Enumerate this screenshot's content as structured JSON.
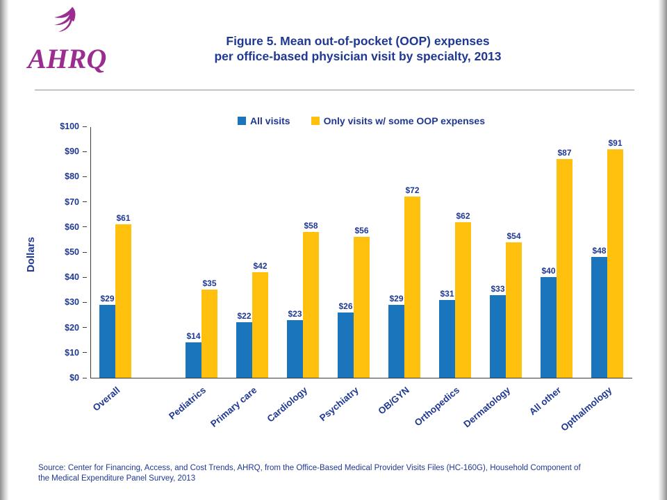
{
  "slide": {
    "logo": {
      "text": "AHRQ"
    },
    "title": {
      "line1": "Figure 5. Mean out-of-pocket (OOP) expenses",
      "line2": "per office-based physician visit by specialty, 2013"
    },
    "source": {
      "line1": "Source: Center for Financing, Access, and Cost Trends, AHRQ, from the Office-Based Medical Provider Visits Files (HC-160G), Household Component of",
      "line2": "the Medical Expenditure Panel Survey,  2013"
    }
  },
  "chart_data": {
    "type": "bar",
    "title": "Figure 5. Mean out-of-pocket (OOP) expenses per office-based physician visit by specialty, 2013",
    "categories": [
      "Overall",
      "Pediatrics",
      "Primary care",
      "Cardiology",
      "Psychiatry",
      "OB/GYN",
      "Orthopedics",
      "Dermatology",
      "All other",
      "Opthalmology"
    ],
    "series": [
      {
        "name": "All visits",
        "color": "#1B75BC",
        "values": [
          29,
          14,
          22,
          23,
          26,
          29,
          31,
          33,
          40,
          48
        ]
      },
      {
        "name": "Only visits w/ some OOP expenses",
        "color": "#FFC10E",
        "values": [
          61,
          35,
          42,
          58,
          56,
          72,
          62,
          54,
          87,
          91
        ]
      }
    ],
    "ylabel": "Dollars",
    "xlabel": "",
    "ylim": [
      0,
      100
    ],
    "ytick_step": 10,
    "ytick_labels": [
      "$0",
      "$10",
      "$20",
      "$30",
      "$40",
      "$50",
      "$60",
      "$70",
      "$80",
      "$90",
      "$100"
    ],
    "value_prefix": "$",
    "legend_position": "top-center",
    "grid": false
  },
  "colors": {
    "accent_navy": "#1F3893",
    "bar_blue": "#1B75BC",
    "bar_gold": "#FFC10E",
    "logo_magenta": "#9B2D90",
    "axis_line": "#3a3a3a"
  }
}
